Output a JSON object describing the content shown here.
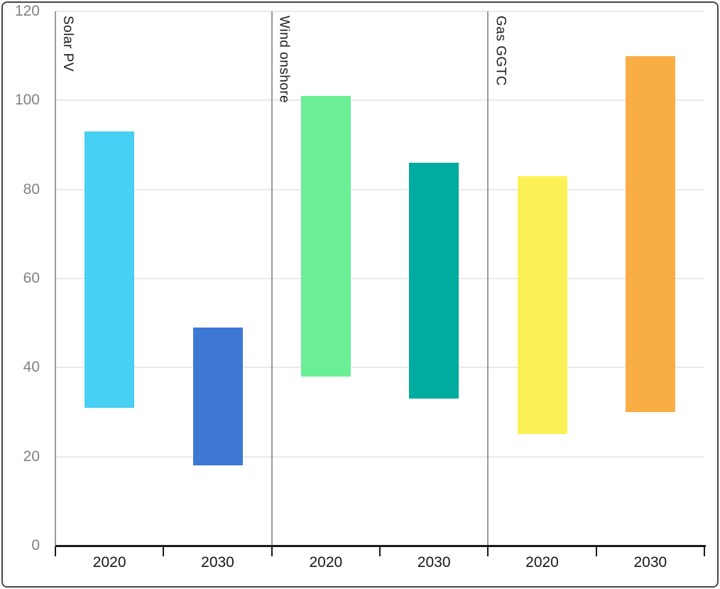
{
  "chart_data": {
    "type": "bar",
    "subtype": "floating-range-bars",
    "title": "",
    "xlabel": "",
    "ylabel": "",
    "grid": true,
    "legend": "none",
    "y_axis": {
      "min": 0,
      "max": 120,
      "tick_interval": 20,
      "tick_labels": [
        "0",
        "20",
        "40",
        "60",
        "80",
        "100",
        "120"
      ]
    },
    "panels": [
      {
        "label": "Solar PV",
        "bars": [
          {
            "category": "2020",
            "low": 31,
            "high": 93,
            "color": "#47cff4"
          },
          {
            "category": "2030",
            "low": 18,
            "high": 49,
            "color": "#3d78d4"
          }
        ]
      },
      {
        "label": "Wind onshore",
        "bars": [
          {
            "category": "2020",
            "low": 38,
            "high": 101,
            "color": "#6aef95"
          },
          {
            "category": "2030",
            "low": 33,
            "high": 86,
            "color": "#00aba0"
          }
        ]
      },
      {
        "label": "Gas GGTC",
        "bars": [
          {
            "category": "2020",
            "low": 25,
            "high": 83,
            "color": "#fbf156"
          },
          {
            "category": "2030",
            "low": 30,
            "high": 110,
            "color": "#f9ae45"
          }
        ]
      }
    ],
    "x_tick_labels": [
      "2020",
      "2030",
      "2020",
      "2030",
      "2020",
      "2030"
    ],
    "colors": {
      "grid": "#e9e9e9",
      "panel_separator": "#9a9a9a",
      "x_axis": "#1a1a1a",
      "y_label_text": "#808080",
      "x_label_text": "#161616",
      "panel_label_text": "#1c1c1c",
      "frame_border": "#474747",
      "background": "#ffffff"
    }
  }
}
